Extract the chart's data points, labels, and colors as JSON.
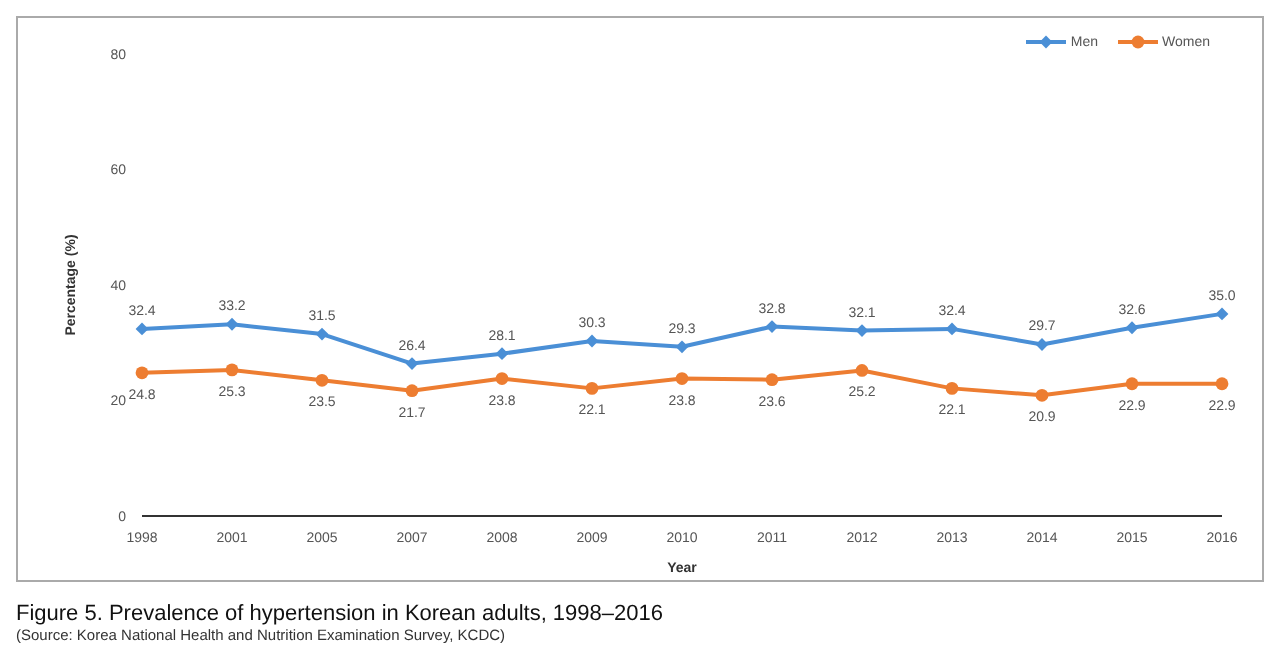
{
  "chart_data": {
    "type": "line",
    "title": "Figure 5. Prevalence of hypertension in Korean adults, 1998–2016",
    "annotations": [
      "(Source: Korea National Health and Nutrition Examination Survey, KCDC)"
    ],
    "xlabel": "Year",
    "ylabel": "Percentage (%)",
    "categories": [
      "1998",
      "2001",
      "2005",
      "2007",
      "2008",
      "2009",
      "2010",
      "2011",
      "2012",
      "2013",
      "2014",
      "2015",
      "2016"
    ],
    "series": [
      {
        "name": "Men",
        "color": "#4a8fd6",
        "marker": "diamond",
        "values": [
          32.4,
          33.2,
          31.5,
          26.4,
          28.1,
          30.3,
          29.3,
          32.8,
          32.1,
          32.4,
          29.7,
          32.6,
          35.0
        ],
        "value_labels": [
          "32.4",
          "33.2",
          "31.5",
          "26.4",
          "28.1",
          "30.3",
          "29.3",
          "32.8",
          "32.1",
          "32.4",
          "29.7",
          "32.6",
          "35.0"
        ]
      },
      {
        "name": "Women",
        "color": "#ed7d31",
        "marker": "circle",
        "values": [
          24.8,
          25.3,
          23.5,
          21.7,
          23.8,
          22.1,
          23.8,
          23.6,
          25.2,
          22.1,
          20.9,
          22.9,
          22.9
        ],
        "value_labels": [
          "24.8",
          "25.3",
          "23.5",
          "21.7",
          "23.8",
          "22.1",
          "23.8",
          "23.6",
          "25.2",
          "22.1",
          "20.9",
          "22.9",
          "22.9"
        ]
      }
    ],
    "ylim": [
      0,
      80
    ],
    "yticks": [
      0,
      20,
      40,
      60,
      80
    ],
    "grid": false,
    "legend": "top right",
    "line_style": "solid"
  }
}
